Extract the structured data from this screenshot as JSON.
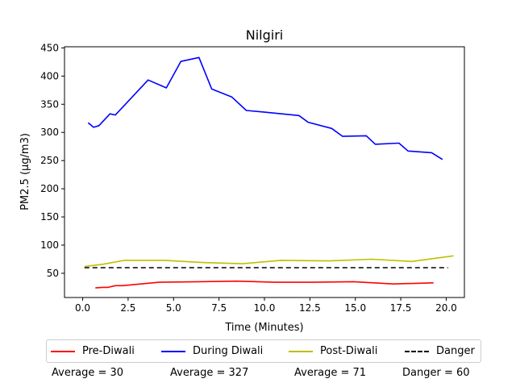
{
  "chart_data": {
    "type": "line",
    "title": "Nilgiri",
    "xlabel": "Time (Minutes)",
    "ylabel": "PM2.5 (µg/m3)",
    "xlim": [
      -1.0,
      21.0
    ],
    "ylim": [
      7,
      452
    ],
    "xticks": [
      0.0,
      2.5,
      5.0,
      7.5,
      10.0,
      12.5,
      15.0,
      17.5,
      20.0
    ],
    "xtick_labels": [
      "0.0",
      "2.5",
      "5.0",
      "7.5",
      "10.0",
      "12.5",
      "15.0",
      "17.5",
      "20.0"
    ],
    "yticks": [
      50,
      100,
      150,
      200,
      250,
      300,
      350,
      400,
      450
    ],
    "ytick_labels": [
      "50",
      "100",
      "150",
      "200",
      "250",
      "300",
      "350",
      "400",
      "450"
    ],
    "grid": false,
    "legend_position": "below",
    "series": [
      {
        "name": "Pre-Diwali",
        "color": "#ff0000",
        "style": "solid",
        "x": [
          0.7,
          1.1,
          1.4,
          1.8,
          2.2,
          4.2,
          6.4,
          8.5,
          10.6,
          12.6,
          14.9,
          17.1,
          19.3
        ],
        "y": [
          24,
          25,
          25,
          28,
          28,
          34,
          35,
          36,
          34,
          34,
          35,
          31,
          33
        ]
      },
      {
        "name": "During Diwali",
        "color": "#0000ff",
        "style": "solid",
        "x": [
          0.3,
          0.6,
          0.9,
          1.5,
          1.8,
          3.6,
          4.6,
          5.4,
          6.4,
          7.1,
          8.2,
          9.0,
          10.0,
          11.9,
          12.4,
          13.7,
          14.3,
          15.6,
          16.1,
          17.4,
          17.9,
          19.2,
          19.8
        ],
        "y": [
          317,
          309,
          312,
          333,
          331,
          393,
          379,
          426,
          433,
          377,
          363,
          339,
          336,
          330,
          318,
          307,
          293,
          294,
          279,
          281,
          267,
          264,
          252
        ]
      },
      {
        "name": "Post-Diwali",
        "color": "#bfbf00",
        "style": "solid",
        "x": [
          0.1,
          1.1,
          2.3,
          4.5,
          6.7,
          8.8,
          10.9,
          13.6,
          15.9,
          18.1,
          20.4
        ],
        "y": [
          62,
          66,
          73,
          73,
          69,
          67,
          73,
          72,
          75,
          71,
          81
        ]
      },
      {
        "name": "Danger",
        "color": "#000000",
        "style": "dashed",
        "x": [
          0.1,
          20.1
        ],
        "y": [
          60,
          60
        ]
      }
    ],
    "annotations": [
      "Average = 30",
      "Average = 327",
      "Average = 71",
      "Danger = 60"
    ]
  }
}
